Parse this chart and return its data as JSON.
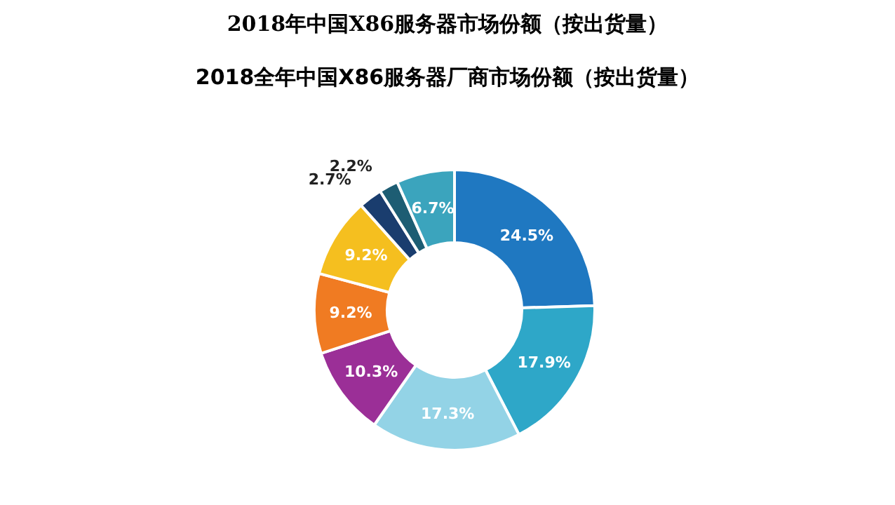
{
  "chart_data": {
    "type": "donut",
    "title": "2018年中国X86服务器市场份额（按出货量）",
    "subtitle": "2018全年中国X86服务器厂商市场份额（按出货量）",
    "categories": [
      null,
      null,
      null,
      null,
      null,
      null,
      null,
      null,
      null
    ],
    "values": [
      24.5,
      17.9,
      17.3,
      10.3,
      9.2,
      9.2,
      2.7,
      2.2,
      6.7
    ],
    "colors": [
      "#1f78c1",
      "#2ea7c8",
      "#93d3e6",
      "#9b2f97",
      "#f07b22",
      "#f5bf1f",
      "#1a3d6e",
      "#1d5d73",
      "#3ba4bd"
    ],
    "value_labels": [
      "24.5%",
      "17.9%",
      "17.3%",
      "10.3%",
      "9.2%",
      "9.2%",
      "2.7%",
      "2.2%",
      "6.7%"
    ]
  }
}
